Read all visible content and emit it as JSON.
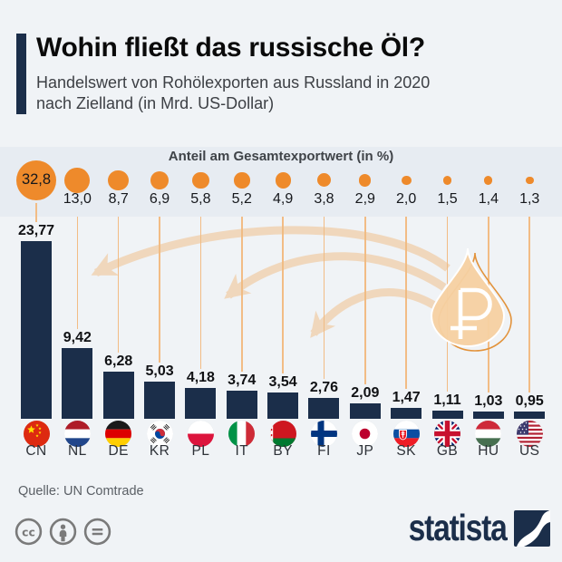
{
  "header": {
    "title": "Wohin fließt das russische Öl?",
    "subtitle": "Handelswert von Rohölexporten aus Russland in 2020\nnach Zielland (in Mrd. US-Dollar)"
  },
  "chart_data": {
    "type": "bar",
    "title": "Wohin fließt das russische Öl?",
    "subtitle": "Handelswert von Rohölexporten aus Russland in 2020 nach Zielland (in Mrd. US-Dollar)",
    "bubble_header": "Anteil am Gesamtexportwert (in %)",
    "categories": [
      "CN",
      "NL",
      "DE",
      "KR",
      "PL",
      "IT",
      "BY",
      "FI",
      "JP",
      "SK",
      "GB",
      "HU",
      "US"
    ],
    "series": [
      {
        "name": "Handelswert der Rohölexporte (Mrd. US-Dollar)",
        "values": [
          23.77,
          9.42,
          6.28,
          5.03,
          4.18,
          3.74,
          3.54,
          2.76,
          2.09,
          1.47,
          1.11,
          1.03,
          0.95
        ],
        "labels": [
          "23,77",
          "9,42",
          "6,28",
          "5,03",
          "4,18",
          "3,74",
          "3,54",
          "2,76",
          "2,09",
          "1,47",
          "1,11",
          "1,03",
          "0,95"
        ]
      },
      {
        "name": "Anteil am Gesamtexportwert (%)",
        "values": [
          32.8,
          13.0,
          8.7,
          6.9,
          5.8,
          5.2,
          4.9,
          3.8,
          2.9,
          2.0,
          1.5,
          1.4,
          1.3
        ],
        "labels": [
          "32,8",
          "13,0",
          "8,7",
          "6,9",
          "5,8",
          "5,2",
          "4,9",
          "3,8",
          "2,9",
          "2,0",
          "1,5",
          "1,4",
          "1,3"
        ]
      }
    ],
    "ylim": [
      0,
      25
    ],
    "grid": false,
    "legend_position": "none"
  },
  "drop": {
    "currency_symbol": "₽"
  },
  "footer": {
    "source": "Quelle: UN Comtrade"
  },
  "branding": {
    "wordmark": "statista"
  },
  "license_icons": [
    "cc-icon",
    "attribution-icon",
    "no-derivatives-icon"
  ],
  "colors": {
    "background": "#f0f3f6",
    "band": "#e7ecf2",
    "bar": "#1b2e4a",
    "bubble": "#ee8a2b",
    "connector": "#f2bc85",
    "arrow": "#f0bc84",
    "drop_fill": "#f6d0a2",
    "drop_stroke": "#e2923a",
    "navy": "#1b2e4a"
  }
}
